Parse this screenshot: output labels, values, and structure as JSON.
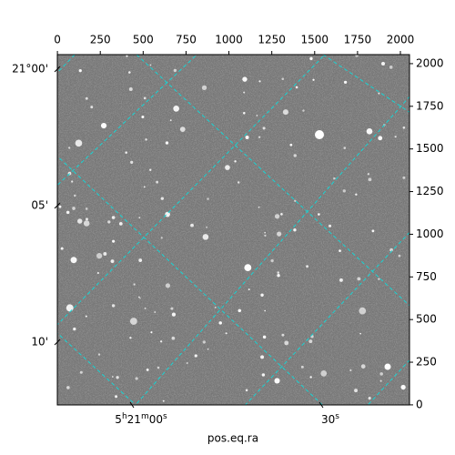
{
  "chart_data": {
    "type": "image",
    "xlabel": "pos.eq.ra",
    "xlim": [
      -0.5,
      2053
    ],
    "ylim": [
      -0.5,
      2053
    ],
    "xticks": [
      0,
      250,
      500,
      750,
      1000,
      1250,
      1500,
      1750,
      2000
    ],
    "yticks": [
      0,
      250,
      500,
      750,
      1000,
      1250,
      1500,
      1750,
      2000
    ],
    "dec_ticks": [
      "21°00'",
      "05'",
      "10'"
    ],
    "ra_ticks": [
      "5h21m00s",
      "30s"
    ],
    "grid": true,
    "grid_color": "#17d4d4"
  }
}
